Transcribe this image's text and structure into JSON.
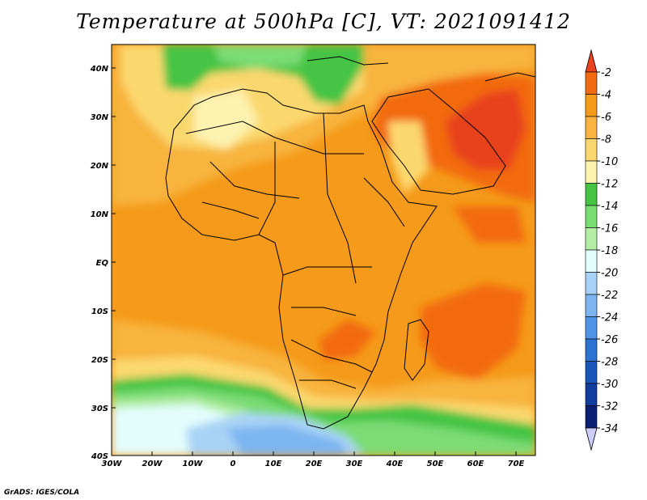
{
  "title": "Temperature at 500hPa [C], VT: 2021091412",
  "credit": "GrADS: IGES/COLA",
  "map": {
    "lon_ticks": [
      "30W",
      "20W",
      "10W",
      "0",
      "10E",
      "20E",
      "30E",
      "40E",
      "50E",
      "60E",
      "70E"
    ],
    "lat_ticks": [
      "40N",
      "30N",
      "20N",
      "10N",
      "EQ",
      "10S",
      "20S",
      "30S",
      "40S"
    ]
  },
  "colorbar": {
    "labels": [
      "-2",
      "-4",
      "-6",
      "-8",
      "-10",
      "-12",
      "-14",
      "-16",
      "-18",
      "-20",
      "-22",
      "-24",
      "-26",
      "-28",
      "-30",
      "-32",
      "-34"
    ],
    "colors": [
      "#e8431c",
      "#f36a11",
      "#f59a1a",
      "#f8b43e",
      "#fbd86e",
      "#fdf2b0",
      "#45c444",
      "#7cdc74",
      "#b3eea4",
      "#e3fdfd",
      "#a9d3f6",
      "#7db5f1",
      "#4f93e6",
      "#2d73d4",
      "#1a55bc",
      "#123da0",
      "#0c1f73",
      "#ccccf6"
    ]
  }
}
